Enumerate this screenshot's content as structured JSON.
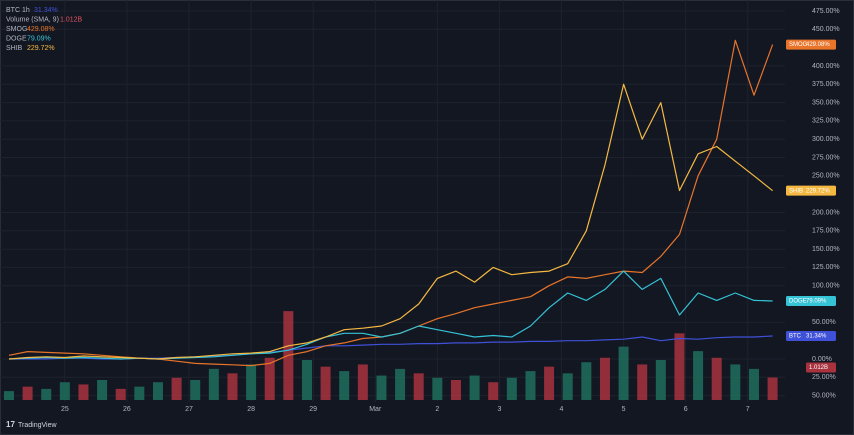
{
  "chart_data": {
    "type": "line",
    "brand": "TradingView",
    "interval": "1h",
    "x": [
      24.1,
      24.4,
      24.7,
      25.0,
      25.3,
      25.6,
      25.9,
      26.2,
      26.5,
      26.8,
      27.1,
      27.4,
      27.7,
      28.0,
      28.3,
      28.6,
      28.9,
      29.2,
      29.5,
      29.8,
      30.1,
      30.4,
      30.7,
      31.0,
      31.3,
      31.6,
      31.9,
      32.2,
      32.5,
      32.8,
      33.1,
      33.4,
      33.7,
      34.0,
      34.3,
      34.6,
      34.9,
      35.2,
      35.5,
      35.8,
      36.1,
      36.4
    ],
    "xlim": [
      24.02,
      36.6
    ],
    "xticks": [
      {
        "value": 25,
        "label": "25"
      },
      {
        "value": 26,
        "label": "26"
      },
      {
        "value": 27,
        "label": "27"
      },
      {
        "value": 28,
        "label": "28"
      },
      {
        "value": 29,
        "label": "29"
      },
      {
        "value": 30,
        "label": "Mar"
      },
      {
        "value": 31,
        "label": "2"
      },
      {
        "value": 32,
        "label": "3"
      },
      {
        "value": 33,
        "label": "4"
      },
      {
        "value": 34,
        "label": "5"
      },
      {
        "value": 35,
        "label": "6"
      },
      {
        "value": 36,
        "label": "7"
      }
    ],
    "ylim": [
      -56,
      490
    ],
    "yticks": [
      {
        "value": 475,
        "label": "475.00%"
      },
      {
        "value": 450,
        "label": "450.00%"
      },
      {
        "value": 400,
        "label": "400.00%"
      },
      {
        "value": 375,
        "label": "375.00%"
      },
      {
        "value": 350,
        "label": "350.00%"
      },
      {
        "value": 325,
        "label": "325.00%"
      },
      {
        "value": 300,
        "label": "300.00%"
      },
      {
        "value": 275,
        "label": "275.00%"
      },
      {
        "value": 250,
        "label": "250.00%"
      },
      {
        "value": 200,
        "label": "200.00%"
      },
      {
        "value": 175,
        "label": "175.00%"
      },
      {
        "value": 150,
        "label": "150.00%"
      },
      {
        "value": 125,
        "label": "125.00%"
      },
      {
        "value": 100,
        "label": "100.00%"
      },
      {
        "value": 50,
        "label": "50.00%"
      },
      {
        "value": 0,
        "label": "0.00%"
      },
      {
        "value": -25,
        "label": "25.00%"
      },
      {
        "value": -50,
        "label": "50.00%"
      }
    ],
    "grid": true,
    "series": [
      {
        "name": "BTC",
        "color": "#3f51d8",
        "last_label": "31.34%",
        "values": [
          0,
          0,
          0,
          1,
          1,
          0,
          0,
          1,
          1,
          2,
          3,
          4,
          5,
          7,
          9,
          12,
          15,
          18,
          18,
          19,
          20,
          20,
          21,
          21,
          22,
          22,
          23,
          23,
          24,
          24,
          25,
          25,
          26,
          27,
          30,
          25,
          28,
          27,
          29,
          30,
          30,
          31.34
        ]
      },
      {
        "name": "SMOG",
        "color": "#e8742a",
        "last_label": "429.08%",
        "values": [
          5,
          10,
          9,
          8,
          7,
          5,
          3,
          1,
          0,
          -3,
          -6,
          -7,
          -8,
          -9,
          -6,
          5,
          10,
          18,
          22,
          28,
          30,
          35,
          45,
          55,
          62,
          70,
          75,
          80,
          85,
          100,
          112,
          110,
          115,
          120,
          118,
          140,
          170,
          250,
          300,
          435,
          360,
          429.08
        ]
      },
      {
        "name": "DOGE",
        "color": "#35c3d6",
        "last_label": "79.09%",
        "values": [
          0,
          1,
          2,
          1,
          2,
          1,
          0,
          1,
          0,
          1,
          2,
          3,
          5,
          7,
          8,
          12,
          20,
          30,
          35,
          35,
          30,
          35,
          45,
          40,
          35,
          30,
          32,
          30,
          45,
          70,
          90,
          80,
          95,
          120,
          95,
          110,
          60,
          90,
          80,
          90,
          80,
          79.09
        ]
      },
      {
        "name": "SHIB",
        "color": "#f5b942",
        "last_label": "229.72%",
        "values": [
          0,
          2,
          3,
          2,
          4,
          3,
          2,
          1,
          0,
          2,
          3,
          5,
          7,
          8,
          10,
          18,
          22,
          30,
          40,
          42,
          45,
          55,
          75,
          110,
          120,
          105,
          125,
          115,
          118,
          120,
          130,
          175,
          265,
          375,
          300,
          350,
          230,
          280,
          290,
          270,
          250,
          229.72
        ]
      }
    ],
    "volume": {
      "name": "Volume (SMA, 9)",
      "last_label": "1.012B",
      "lim": [
        0,
        4.5
      ],
      "up_color": "#1f6f5c",
      "down_color": "#a8323e",
      "values": [
        0.4,
        0.6,
        0.5,
        0.8,
        0.7,
        0.9,
        0.5,
        0.6,
        0.8,
        1.0,
        0.9,
        1.4,
        1.2,
        1.6,
        1.9,
        4.0,
        1.8,
        1.5,
        1.3,
        1.6,
        1.1,
        1.4,
        1.2,
        1.0,
        0.9,
        1.1,
        0.8,
        1.0,
        1.3,
        1.5,
        1.2,
        1.7,
        1.9,
        2.4,
        1.6,
        1.8,
        3.0,
        2.2,
        1.9,
        1.6,
        1.4,
        1.012
      ],
      "up": [
        true,
        false,
        true,
        true,
        false,
        true,
        false,
        true,
        true,
        false,
        true,
        true,
        false,
        true,
        false,
        false,
        true,
        false,
        true,
        false,
        true,
        true,
        false,
        true,
        false,
        true,
        false,
        true,
        true,
        false,
        true,
        true,
        false,
        true,
        false,
        true,
        false,
        true,
        false,
        true,
        true,
        false
      ]
    }
  }
}
